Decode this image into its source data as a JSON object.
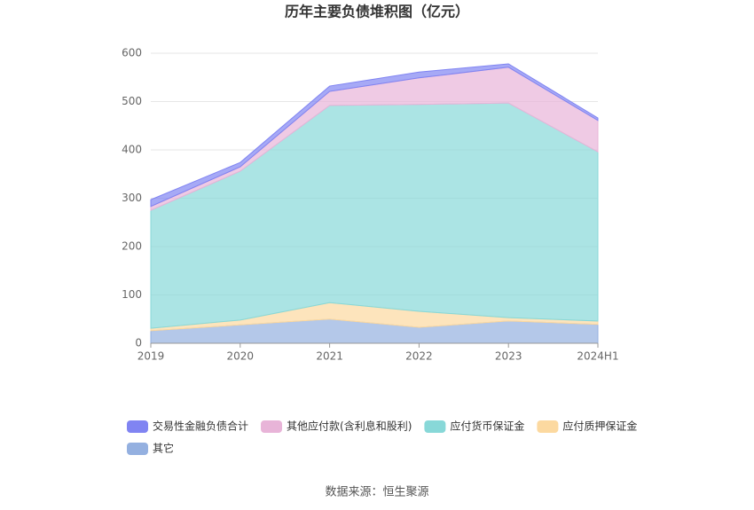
{
  "chart_data": {
    "type": "stacked-area",
    "title": "历年主要负债堆积图（亿元）",
    "categories": [
      "2019",
      "2020",
      "2021",
      "2022",
      "2023",
      "2024H1"
    ],
    "series": [
      {
        "name": "其它",
        "color": "#94b0e0",
        "values": [
          26,
          38,
          50,
          33,
          46,
          39
        ]
      },
      {
        "name": "应付质押保证金",
        "color": "#fcd9a0",
        "values": [
          5,
          10,
          34,
          33,
          7,
          7
        ]
      },
      {
        "name": "应付货币保证金",
        "color": "#88d8d8",
        "values": [
          244,
          308,
          408,
          428,
          444,
          350
        ]
      },
      {
        "name": "其他应付款(含利息和股利)",
        "color": "#e8b4d8",
        "values": [
          8,
          9,
          29,
          55,
          74,
          65
        ]
      },
      {
        "name": "交易性金融负债合计",
        "color": "#8084f2",
        "values": [
          14,
          9,
          11,
          12,
          7,
          5
        ]
      }
    ],
    "legend_order": [
      4,
      3,
      2,
      1,
      0
    ],
    "ylim": [
      0,
      600
    ],
    "yticks": [
      0,
      100,
      200,
      300,
      400,
      500,
      600
    ],
    "grid": true,
    "source": "数据来源：恒生聚源"
  }
}
